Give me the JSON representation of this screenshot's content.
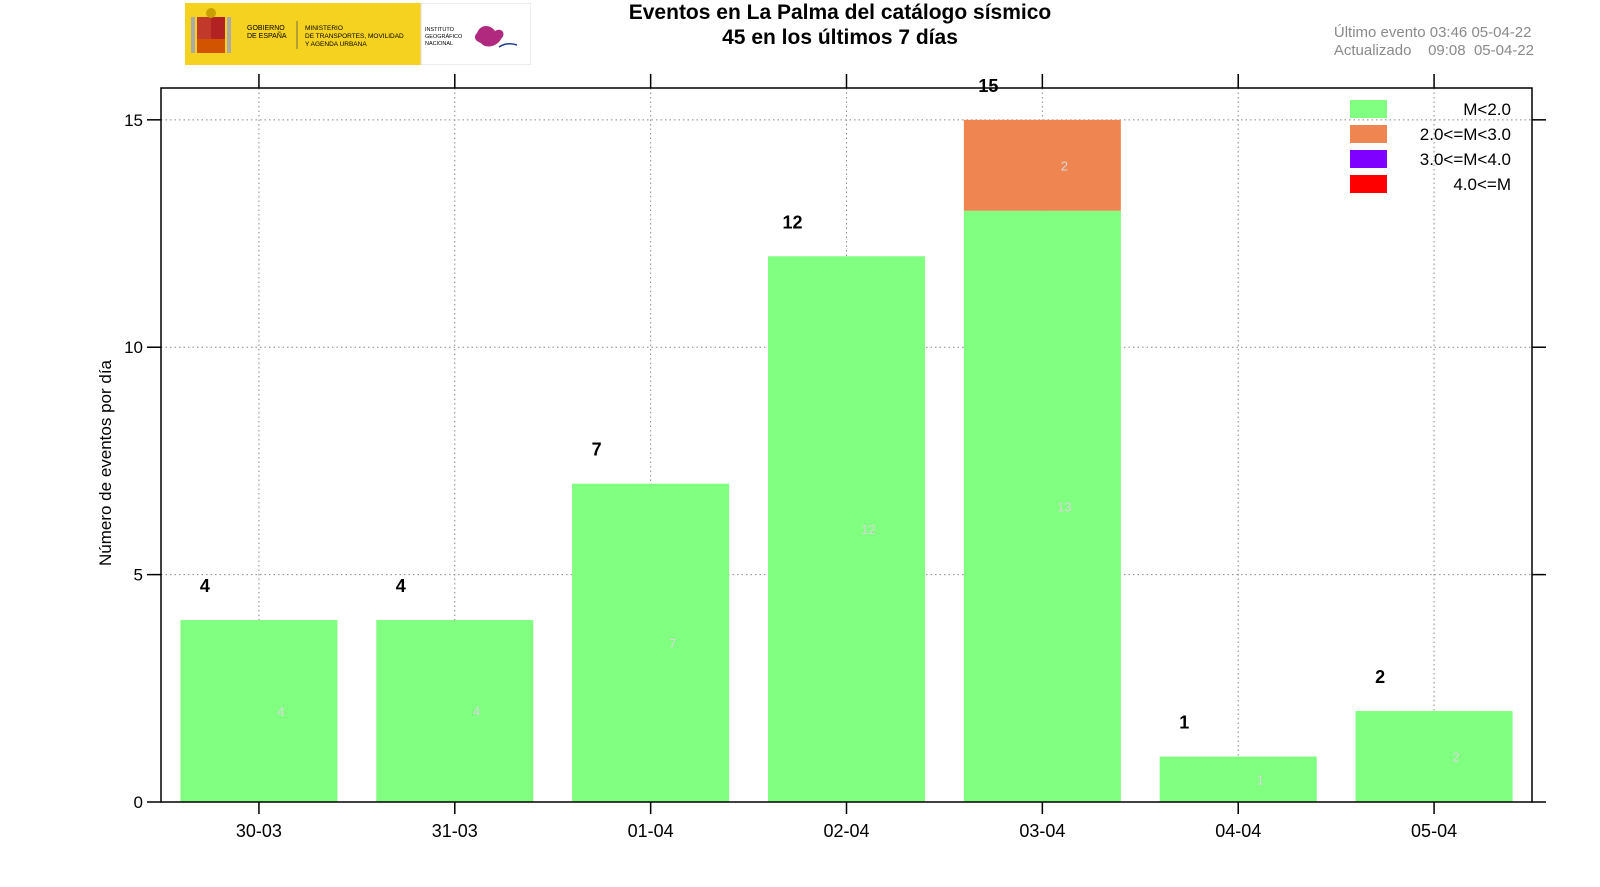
{
  "header": {
    "logo": {
      "gobierno_text": [
        "GOBIERNO",
        "DE ESPAÑA"
      ],
      "ministerio_text": [
        "MINISTERIO",
        "DE TRANSPORTES, MOVILIDAD",
        "Y AGENDA URBANA"
      ],
      "instituto_text": [
        "INSTITUTO",
        "GEOGRÁFICO",
        "NACIONAL"
      ],
      "colors": {
        "band": "#f5d21f",
        "shield": "#b22222",
        "ign_mark": "#b0297f"
      }
    },
    "title_line1": "Eventos en La Palma del catálogo sísmico",
    "title_line2": "45 en los últimos 7 días",
    "ultimo_evento": "Último evento 03:46 05-04-22",
    "actualizado": "Actualizado    09:08  05-04-22"
  },
  "chart_data": {
    "type": "bar",
    "stacked": true,
    "categories": [
      "30-03",
      "31-03",
      "01-04",
      "02-04",
      "03-04",
      "04-04",
      "05-04"
    ],
    "series": [
      {
        "name": "M<2.0",
        "color": "#80ff80",
        "values": [
          4,
          4,
          7,
          12,
          13,
          1,
          2
        ]
      },
      {
        "name": "2.0<=M<3.0",
        "color": "#ef8651",
        "values": [
          0,
          0,
          0,
          0,
          2,
          0,
          0
        ]
      },
      {
        "name": "3.0<=M<4.0",
        "color": "#7f00ff",
        "values": [
          0,
          0,
          0,
          0,
          0,
          0,
          0
        ]
      },
      {
        "name": "4.0<=M",
        "color": "#ff0000",
        "values": [
          0,
          0,
          0,
          0,
          0,
          0,
          0
        ]
      }
    ],
    "totals": [
      4,
      4,
      7,
      12,
      15,
      1,
      2
    ],
    "ylabel": "Número de eventos por día",
    "ylim": [
      0,
      15.7
    ],
    "yticks": [
      0,
      5,
      10,
      15
    ],
    "grid": true,
    "legend_position": "top-right"
  }
}
